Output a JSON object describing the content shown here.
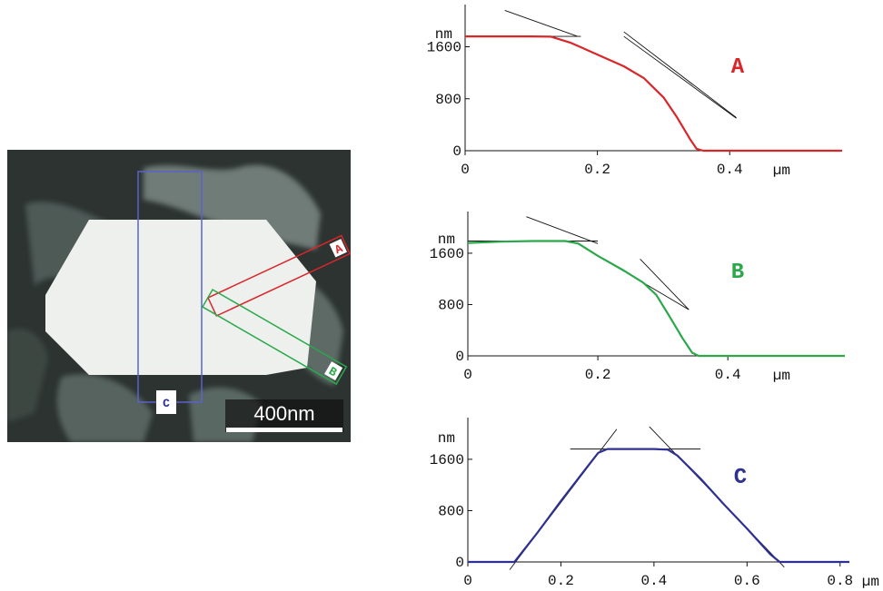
{
  "micrograph": {
    "scale_bar_label": "400nm",
    "box_labels": [
      "A",
      "B",
      "C"
    ],
    "colors": {
      "A": "#d9262a",
      "B": "#2aa84a",
      "C": "#2e3192"
    }
  },
  "chart_data": [
    {
      "type": "line",
      "id": "A",
      "tag": "A",
      "color": "#d9262a",
      "ylabel": "nm",
      "xunit": "µm",
      "x_ticks": [
        "0",
        "0.2",
        "0.4"
      ],
      "x_tick_values": [
        0,
        0.2,
        0.4
      ],
      "y_ticks": [
        "0",
        "800",
        "1600"
      ],
      "y_tick_values": [
        0,
        800,
        1600
      ],
      "xlim": [
        0,
        0.57
      ],
      "ylim": [
        0,
        2250
      ],
      "series": [
        {
          "x": [
            0,
            0.05,
            0.1,
            0.13,
            0.16,
            0.2,
            0.24,
            0.27,
            0.3,
            0.32,
            0.34,
            0.35,
            0.36,
            0.4,
            0.45,
            0.5,
            0.57
          ],
          "y": [
            1760,
            1760,
            1760,
            1755,
            1660,
            1480,
            1300,
            1120,
            820,
            520,
            180,
            30,
            0,
            0,
            0,
            0,
            0
          ]
        }
      ],
      "tangents": [
        [
          [
            0.06,
            2160
          ],
          [
            0.17,
            1760
          ]
        ],
        [
          [
            0.1,
            1760
          ],
          [
            0.175,
            1760
          ]
        ],
        [
          [
            0.24,
            1830
          ],
          [
            0.41,
            510
          ]
        ],
        [
          [
            0.24,
            1760
          ],
          [
            0.41,
            500
          ]
        ]
      ]
    },
    {
      "type": "line",
      "id": "B",
      "tag": "B",
      "color": "#2aa84a",
      "ylabel": "nm",
      "xunit": "µm",
      "x_ticks": [
        "0",
        "0.2",
        "0.4"
      ],
      "x_tick_values": [
        0,
        0.2,
        0.4
      ],
      "y_ticks": [
        "0",
        "800",
        "1600"
      ],
      "y_tick_values": [
        0,
        800,
        1600
      ],
      "xlim": [
        0,
        0.58
      ],
      "ylim": [
        0,
        2250
      ],
      "series": [
        {
          "x": [
            0,
            0.05,
            0.1,
            0.15,
            0.17,
            0.2,
            0.24,
            0.27,
            0.29,
            0.31,
            0.33,
            0.345,
            0.355,
            0.4,
            0.45,
            0.5,
            0.58
          ],
          "y": [
            1760,
            1780,
            1790,
            1790,
            1750,
            1560,
            1330,
            1140,
            950,
            620,
            280,
            50,
            0,
            0,
            0,
            0,
            0
          ]
        }
      ],
      "tangents": [
        [
          [
            0.09,
            2170
          ],
          [
            0.2,
            1750
          ]
        ],
        [
          [
            0.0,
            1790
          ],
          [
            0.2,
            1790
          ]
        ],
        [
          [
            0.265,
            1510
          ],
          [
            0.34,
            720
          ]
        ],
        [
          [
            0.2,
            1560
          ],
          [
            0.34,
            720
          ]
        ]
      ]
    },
    {
      "type": "line",
      "id": "C",
      "tag": "C",
      "color": "#2e3192",
      "ylabel": "nm",
      "xunit": "µm",
      "x_ticks": [
        "0",
        "0.2",
        "0.4",
        "0.6",
        "0.8"
      ],
      "x_tick_values": [
        0,
        0.2,
        0.4,
        0.6,
        0.8
      ],
      "y_ticks": [
        "0",
        "800",
        "1600"
      ],
      "y_tick_values": [
        0,
        800,
        1600
      ],
      "xlim": [
        0,
        0.82
      ],
      "ylim": [
        0,
        2250
      ],
      "series": [
        {
          "x": [
            0,
            0.05,
            0.1,
            0.15,
            0.2,
            0.25,
            0.28,
            0.3,
            0.35,
            0.4,
            0.43,
            0.45,
            0.5,
            0.55,
            0.6,
            0.65,
            0.67,
            0.7,
            0.75,
            0.82
          ],
          "y": [
            0,
            0,
            0,
            460,
            950,
            1420,
            1700,
            1760,
            1760,
            1760,
            1750,
            1660,
            1300,
            900,
            520,
            120,
            0,
            0,
            0,
            0
          ]
        }
      ],
      "tangents": [
        [
          [
            0.09,
            -120
          ],
          [
            0.32,
            2070
          ]
        ],
        [
          [
            0.22,
            1760
          ],
          [
            0.5,
            1760
          ]
        ],
        [
          [
            0.39,
            2110
          ],
          [
            0.68,
            -80
          ]
        ]
      ]
    }
  ]
}
